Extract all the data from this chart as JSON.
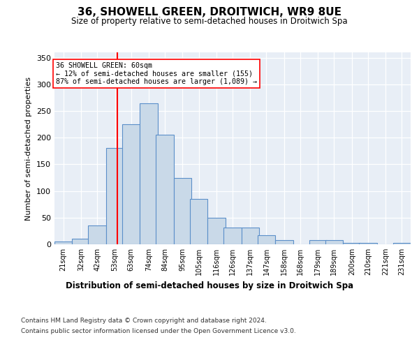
{
  "title": "36, SHOWELL GREEN, DROITWICH, WR9 8UE",
  "subtitle": "Size of property relative to semi-detached houses in Droitwich Spa",
  "xlabel": "Distribution of semi-detached houses by size in Droitwich Spa",
  "ylabel": "Number of semi-detached properties",
  "bin_labels": [
    "21sqm",
    "32sqm",
    "42sqm",
    "53sqm",
    "63sqm",
    "74sqm",
    "84sqm",
    "95sqm",
    "105sqm",
    "116sqm",
    "126sqm",
    "137sqm",
    "147sqm",
    "158sqm",
    "168sqm",
    "179sqm",
    "189sqm",
    "200sqm",
    "210sqm",
    "221sqm",
    "231sqm"
  ],
  "bin_edges": [
    21,
    32,
    42,
    53,
    63,
    74,
    84,
    95,
    105,
    116,
    126,
    137,
    147,
    158,
    168,
    179,
    189,
    200,
    210,
    221,
    231
  ],
  "bar_heights": [
    5,
    10,
    35,
    180,
    225,
    265,
    205,
    125,
    85,
    50,
    32,
    32,
    17,
    8,
    0,
    8,
    8,
    3,
    2,
    0,
    2
  ],
  "bar_color": "#c9d9e8",
  "bar_edge_color": "#5b8fc9",
  "property_size": 60,
  "vline_color": "red",
  "annotation_text": "36 SHOWELL GREEN: 60sqm\n← 12% of semi-detached houses are smaller (155)\n87% of semi-detached houses are larger (1,089) →",
  "annotation_box_color": "white",
  "annotation_box_edge_color": "red",
  "ylim": [
    0,
    360
  ],
  "yticks": [
    0,
    50,
    100,
    150,
    200,
    250,
    300,
    350
  ],
  "background_color": "#e8eef6",
  "footer_line1": "Contains HM Land Registry data © Crown copyright and database right 2024.",
  "footer_line2": "Contains public sector information licensed under the Open Government Licence v3.0."
}
